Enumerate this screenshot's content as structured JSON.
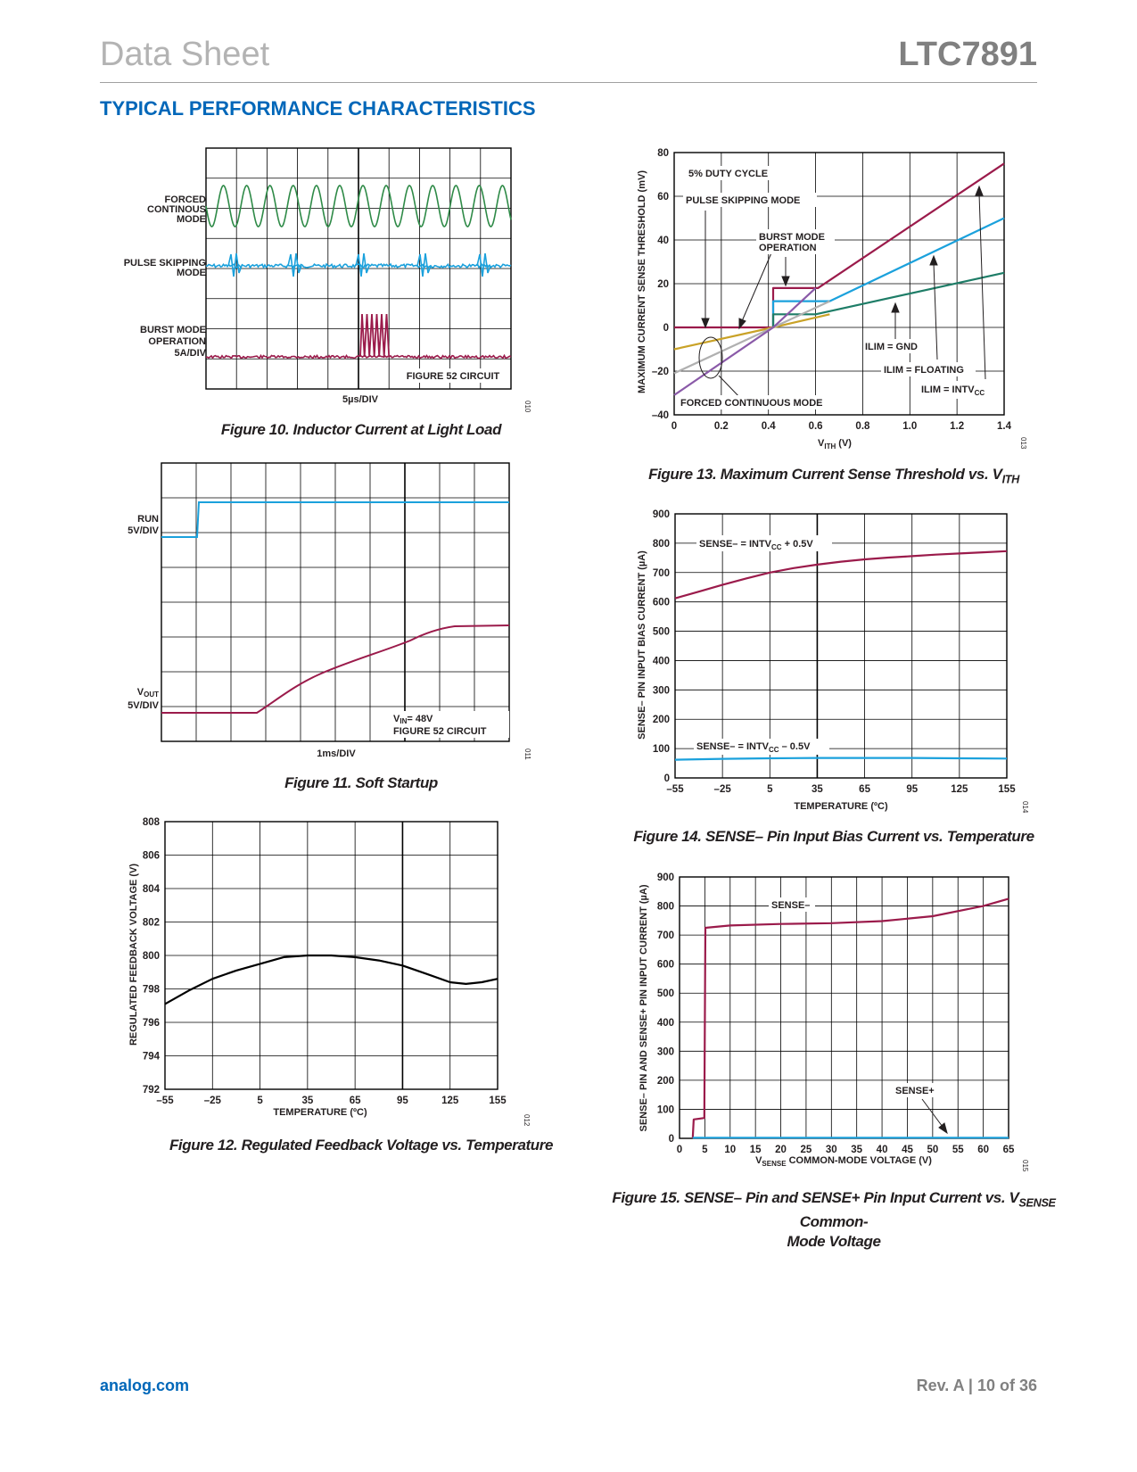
{
  "header": {
    "left": "Data Sheet",
    "right": "LTC7891"
  },
  "section_title": "TYPICAL PERFORMANCE CHARACTERISTICS",
  "footer": {
    "left": "analog.com",
    "right": "Rev. A | 10 of 36"
  },
  "colors": {
    "red": "#9b1b4b",
    "blue": "#1ba1dc",
    "green": "#2e8a47",
    "teal": "#1e7d67",
    "gold": "#c9a227",
    "gray": "#b0b0b0",
    "purple": "#8a5aa8",
    "black": "#000000"
  },
  "chart_data": [
    {
      "id": "fig10",
      "type": "line",
      "caption": "Figure 10. Inductor Current at Light Load",
      "xlabel": "5µs/DIV",
      "note": "FIGURE 52 CIRCUIT",
      "code": "010",
      "traces": [
        {
          "label": [
            "FORCED",
            "CONTINOUS",
            "MODE"
          ],
          "color": "#2e8a47"
        },
        {
          "label": [
            "PULSE SKIPPING",
            "MODE"
          ],
          "color": "#1ba1dc"
        },
        {
          "label": [
            "BURST MODE",
            "OPERATION",
            "5A/DIV"
          ],
          "color": "#9b1b4b"
        }
      ]
    },
    {
      "id": "fig11",
      "type": "line",
      "caption": "Figure 11. Soft Startup",
      "xlabel": "1ms/DIV",
      "note_vin": "= 48V",
      "note": "FIGURE 52 CIRCUIT",
      "code": "011",
      "traces": [
        {
          "label": "RUN",
          "scale": "5V/DIV",
          "color": "#1ba1dc"
        },
        {
          "label": "OUT",
          "scale": "5V/DIV",
          "color": "#9b1b4b"
        }
      ]
    },
    {
      "id": "fig12",
      "type": "line",
      "caption": "Figure 12. Regulated Feedback Voltage vs. Temperature",
      "xlabel": "TEMPERATURE (ºC)",
      "ylabel": "REGULATED FEEDBACK VOLTAGE (V)",
      "code": "012",
      "xlim": [
        -55,
        155
      ],
      "ylim": [
        792,
        808
      ],
      "xticks": [
        -55,
        -25,
        5,
        35,
        65,
        95,
        125,
        155
      ],
      "yticks": [
        792,
        794,
        796,
        798,
        800,
        802,
        804,
        806,
        808
      ],
      "xtick_labels": [
        "–55",
        "–25",
        "5",
        "35",
        "65",
        "95",
        "125",
        "155"
      ],
      "ytick_labels": [
        "792",
        "794",
        "796",
        "798",
        "800",
        "802",
        "804",
        "806",
        "808"
      ],
      "series": [
        {
          "color": "#000000",
          "x": [
            -55,
            -40,
            -25,
            -10,
            5,
            20,
            35,
            50,
            65,
            80,
            95,
            110,
            125,
            135,
            145,
            155
          ],
          "y": [
            797.1,
            797.9,
            798.6,
            799.1,
            799.5,
            799.9,
            800.0,
            800.0,
            799.9,
            799.7,
            799.4,
            798.9,
            798.4,
            798.3,
            798.4,
            798.6
          ]
        }
      ]
    },
    {
      "id": "fig13",
      "type": "line",
      "caption": "Figure 13. Maximum Current Sense Threshold vs. V",
      "caption_sub": "ITH",
      "xlabel": "V",
      "xlabel_sub": "ITH",
      "xlabel_tail": " (V)",
      "ylabel": "MAXIMUM CURRENT SENSE THRESHOLD (mV)",
      "code": "013",
      "xlim": [
        0,
        1.4
      ],
      "ylim": [
        -40,
        80
      ],
      "xticks": [
        0,
        0.2,
        0.4,
        0.6,
        0.8,
        1.0,
        1.2,
        1.4
      ],
      "yticks": [
        -40,
        -20,
        0,
        20,
        40,
        60,
        80
      ],
      "xtick_labels": [
        "0",
        "0.2",
        "0.4",
        "0.6",
        "0.8",
        "1.0",
        "1.2",
        "1.4"
      ],
      "ytick_labels": [
        "–40",
        "–20",
        "0",
        "20",
        "40",
        "60",
        "80"
      ],
      "annotations": [
        "5% DUTY CYCLE",
        "PULSE SKIPPING MODE",
        "BURST MODE",
        "OPERATION",
        "ILIM = GND",
        "ILIM = FLOATING",
        "ILIM = INTV",
        "FORCED CONTINUOUS MODE"
      ],
      "annotation_sub": "CC",
      "series": [
        {
          "name": "ILIM = INTVCC",
          "color": "#9b1b4b",
          "x": [
            0,
            0.42,
            0.42,
            0.42,
            0.61,
            1.4
          ],
          "y": [
            0,
            0,
            0,
            18,
            18,
            75
          ]
        },
        {
          "name": "ILIM = FLOATING",
          "color": "#1ba1dc",
          "x": [
            0.42,
            0.42,
            0.66,
            1.4
          ],
          "y": [
            0,
            12,
            12,
            50
          ]
        },
        {
          "name": "ILIM = GND",
          "color": "#1e7d67",
          "x": [
            0.42,
            0.42,
            0.6,
            1.4
          ],
          "y": [
            0,
            6,
            6,
            25
          ]
        },
        {
          "name": "",
          "color": "#c9a227",
          "x": [
            0,
            0.42,
            0.66
          ],
          "y": [
            -10,
            0,
            6
          ]
        },
        {
          "name": "",
          "color": "#b0b0b0",
          "x": [
            0,
            0.42,
            0.66
          ],
          "y": [
            -21,
            0,
            12
          ]
        },
        {
          "name": "",
          "color": "#8a5aa8",
          "x": [
            0,
            0.42,
            0.6
          ],
          "y": [
            -31,
            0,
            18
          ]
        }
      ]
    },
    {
      "id": "fig14",
      "type": "line",
      "caption": "Figure 14. SENSE– Pin Input Bias Current vs. Temperature",
      "xlabel": "TEMPERATURE (ºC)",
      "ylabel": "SENSE– PIN INPUT BIAS CURRENT (µA)",
      "code": "014",
      "xlim": [
        -55,
        155
      ],
      "ylim": [
        0,
        900
      ],
      "xticks": [
        -55,
        -25,
        5,
        35,
        65,
        95,
        125,
        155
      ],
      "yticks": [
        0,
        100,
        200,
        300,
        400,
        500,
        600,
        700,
        800,
        900
      ],
      "xtick_labels": [
        "–55",
        "–25",
        "5",
        "35",
        "65",
        "95",
        "125",
        "155"
      ],
      "ytick_labels": [
        "0",
        "100",
        "200",
        "300",
        "400",
        "500",
        "600",
        "700",
        "800",
        "900"
      ],
      "annotations": [
        "SENSE– = INTV",
        " + 0.5V",
        "SENSE– = INTV",
        " – 0.5V"
      ],
      "annotation_sub": "CC",
      "series": [
        {
          "name": "SENSE– = INTVCC + 0.5V",
          "color": "#9b1b4b",
          "x": [
            -55,
            -40,
            -25,
            -10,
            5,
            20,
            35,
            50,
            65,
            80,
            95,
            110,
            125,
            140,
            155
          ],
          "y": [
            612,
            635,
            658,
            680,
            700,
            715,
            727,
            737,
            745,
            751,
            756,
            761,
            765,
            769,
            773
          ]
        },
        {
          "name": "SENSE– = INTVCC – 0.5V",
          "color": "#1ba1dc",
          "x": [
            -55,
            -25,
            5,
            35,
            65,
            95,
            125,
            155
          ],
          "y": [
            62,
            65,
            67,
            68,
            68,
            68,
            67,
            66
          ]
        }
      ]
    },
    {
      "id": "fig15",
      "type": "line",
      "caption": "Figure 15. SENSE– Pin and SENSE+ Pin Input Current vs. V",
      "caption_sub": "SENSE",
      "caption_tail": " Common-",
      "caption_line2": "Mode Voltage",
      "xlabel": "V",
      "xlabel_sub": "SENSE",
      "xlabel_tail": " COMMON-MODE VOLTAGE (V)",
      "ylabel": "SENSE– PIN AND SENSE+ PIN INPUT CURRENT (µA)",
      "code": "015",
      "xlim": [
        0,
        65
      ],
      "ylim": [
        0,
        900
      ],
      "xticks": [
        0,
        5,
        10,
        15,
        20,
        25,
        30,
        35,
        40,
        45,
        50,
        55,
        60,
        65
      ],
      "yticks": [
        0,
        100,
        200,
        300,
        400,
        500,
        600,
        700,
        800,
        900
      ],
      "xtick_labels": [
        "0",
        "5",
        "10",
        "15",
        "20",
        "25",
        "30",
        "35",
        "40",
        "45",
        "50",
        "55",
        "60",
        "65"
      ],
      "ytick_labels": [
        "0",
        "100",
        "200",
        "300",
        "400",
        "500",
        "600",
        "700",
        "800",
        "900"
      ],
      "annotations": [
        "SENSE–",
        "SENSE+"
      ],
      "series": [
        {
          "name": "SENSE–",
          "color": "#9b1b4b",
          "x": [
            2.6,
            2.8,
            4.9,
            5.1,
            10,
            20,
            30,
            40,
            50,
            60,
            65
          ],
          "y": [
            0,
            65,
            70,
            725,
            733,
            738,
            741,
            748,
            765,
            800,
            825
          ]
        },
        {
          "name": "SENSE+",
          "color": "#1ba1dc",
          "x": [
            2.6,
            65
          ],
          "y": [
            2,
            2
          ]
        }
      ]
    }
  ]
}
